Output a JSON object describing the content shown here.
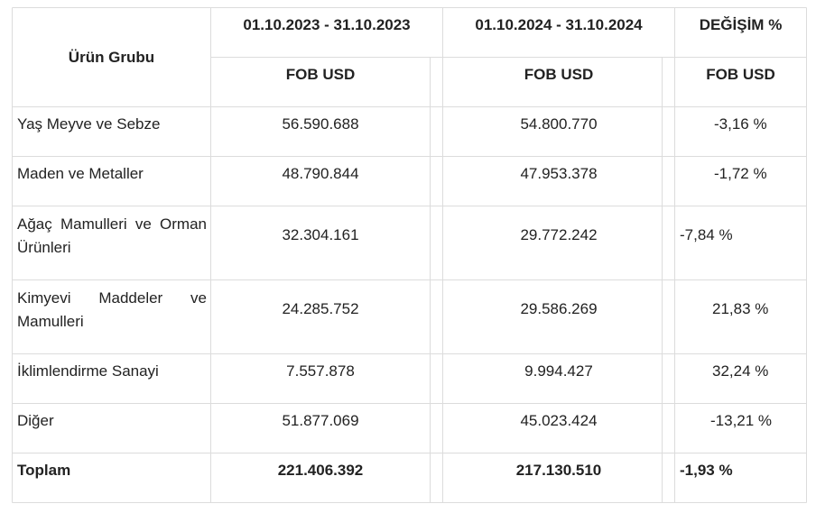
{
  "table": {
    "headers": {
      "group": "Ürün Grubu",
      "period_2023": "01.10.2023 - 31.10.2023",
      "period_2024": "01.10.2024 - 31.10.2024",
      "change": "DEĞİŞİM %",
      "sub_2023": "FOB USD",
      "sub_2024": "FOB USD",
      "sub_change": "FOB USD"
    },
    "rows": [
      {
        "name": "Yaş Meyve ve Sebze",
        "v2023": "56.590.688",
        "v2024": "54.800.770",
        "change": "-3,16 %"
      },
      {
        "name": "Maden ve Metaller",
        "v2023": "48.790.844",
        "v2024": "47.953.378",
        "change": "-1,72 %"
      },
      {
        "name_line1": "Ağaç Mamulleri ve Orman",
        "name_line2": "Ürünleri",
        "v2023": "32.304.161",
        "v2024": "29.772.242",
        "change": "-7,84 %"
      },
      {
        "name_line1": "Kimyevi Maddeler ve",
        "name_line2": "Mamulleri",
        "v2023": "24.285.752",
        "v2024": "29.586.269",
        "change": "21,83 %"
      },
      {
        "name": "İklimlendirme Sanayi",
        "v2023": "7.557.878",
        "v2024": "9.994.427",
        "change": "32,24 %"
      },
      {
        "name": "Diğer",
        "v2023": "51.877.069",
        "v2024": "45.023.424",
        "change": "-13,21 %"
      }
    ],
    "total": {
      "name": "Toplam",
      "v2023": "221.406.392",
      "v2024": "217.130.510",
      "change": "-1,93 %"
    }
  }
}
